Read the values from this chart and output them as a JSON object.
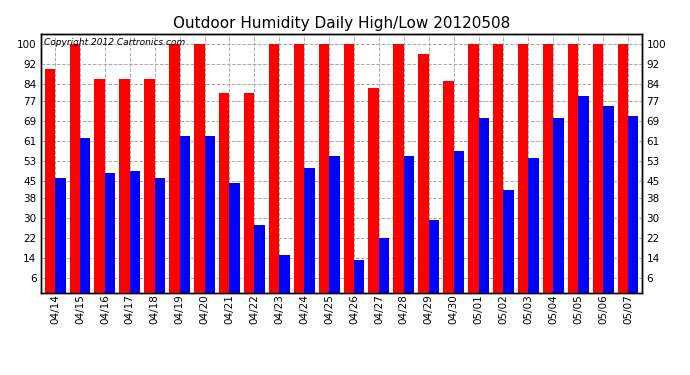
{
  "title": "Outdoor Humidity Daily High/Low 20120508",
  "copyright_text": "Copyright 2012 Cartronics.com",
  "dates": [
    "04/14",
    "04/15",
    "04/16",
    "04/17",
    "04/18",
    "04/19",
    "04/20",
    "04/21",
    "04/22",
    "04/23",
    "04/24",
    "04/25",
    "04/26",
    "04/27",
    "04/28",
    "04/29",
    "04/30",
    "05/01",
    "05/02",
    "05/03",
    "05/04",
    "05/05",
    "05/06",
    "05/07"
  ],
  "highs": [
    90,
    100,
    86,
    86,
    86,
    100,
    100,
    80,
    80,
    100,
    100,
    100,
    100,
    82,
    100,
    96,
    85,
    100,
    100,
    100,
    100,
    100,
    100,
    100
  ],
  "lows": [
    46,
    62,
    48,
    49,
    46,
    63,
    63,
    44,
    27,
    15,
    50,
    55,
    13,
    22,
    55,
    29,
    57,
    70,
    41,
    54,
    70,
    79,
    75,
    71
  ],
  "high_color": "#ff0000",
  "low_color": "#0000ff",
  "bg_color": "#ffffff",
  "yticks": [
    6,
    14,
    22,
    30,
    38,
    45,
    53,
    61,
    69,
    77,
    84,
    92,
    100
  ],
  "ylim": [
    0,
    104
  ],
  "grid_color": "#aaaaaa",
  "title_fontsize": 11,
  "tick_fontsize": 7.5
}
